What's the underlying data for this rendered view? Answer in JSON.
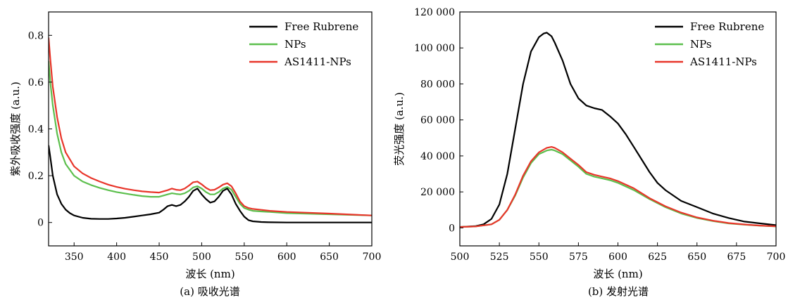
{
  "chart_data": [
    {
      "type": "line",
      "caption": "(a) 吸收光谱",
      "xlabel": "波长 (nm)",
      "ylabel": "紫外吸收强度 (a.u.)",
      "xlim": [
        320,
        700
      ],
      "ylim": [
        -0.1,
        0.9
      ],
      "xticks": [
        350,
        400,
        450,
        500,
        550,
        600,
        650,
        700
      ],
      "xtick_labels": [
        "350",
        "400",
        "450",
        "500",
        "550",
        "600",
        "650",
        "700"
      ],
      "yticks": [
        0,
        0.2,
        0.4,
        0.6,
        0.8
      ],
      "ytick_labels": [
        "0",
        "0.2",
        "0.4",
        "0.6",
        "0.8"
      ],
      "grid": false,
      "legend_position": "top-right",
      "series": [
        {
          "name": "Free Rubrene",
          "color": "#000000",
          "x": [
            320,
            322,
            325,
            330,
            335,
            340,
            345,
            350,
            360,
            370,
            380,
            390,
            400,
            410,
            420,
            430,
            440,
            450,
            455,
            460,
            465,
            470,
            475,
            480,
            485,
            490,
            495,
            500,
            505,
            510,
            515,
            520,
            525,
            530,
            535,
            540,
            545,
            550,
            555,
            560,
            570,
            580,
            600,
            650,
            700
          ],
          "y": [
            0.33,
            0.28,
            0.2,
            0.12,
            0.08,
            0.055,
            0.04,
            0.03,
            0.02,
            0.016,
            0.015,
            0.015,
            0.017,
            0.02,
            0.025,
            0.03,
            0.035,
            0.042,
            0.055,
            0.07,
            0.075,
            0.07,
            0.075,
            0.09,
            0.11,
            0.135,
            0.145,
            0.12,
            0.1,
            0.085,
            0.09,
            0.11,
            0.135,
            0.145,
            0.12,
            0.08,
            0.05,
            0.025,
            0.01,
            0.005,
            0.002,
            0.001,
            0.0,
            0.0,
            0.0
          ]
        },
        {
          "name": "NPs",
          "color": "#5cbf4d",
          "x": [
            320,
            322,
            325,
            330,
            335,
            340,
            350,
            360,
            370,
            380,
            390,
            400,
            410,
            420,
            430,
            440,
            450,
            460,
            465,
            470,
            475,
            480,
            485,
            490,
            495,
            500,
            505,
            510,
            515,
            520,
            525,
            530,
            535,
            540,
            545,
            550,
            555,
            560,
            570,
            580,
            600,
            650,
            700
          ],
          "y": [
            0.69,
            0.6,
            0.5,
            0.38,
            0.3,
            0.25,
            0.2,
            0.175,
            0.16,
            0.148,
            0.138,
            0.13,
            0.124,
            0.118,
            0.113,
            0.11,
            0.11,
            0.12,
            0.125,
            0.122,
            0.12,
            0.125,
            0.135,
            0.15,
            0.155,
            0.145,
            0.13,
            0.12,
            0.12,
            0.13,
            0.145,
            0.152,
            0.14,
            0.11,
            0.08,
            0.062,
            0.055,
            0.05,
            0.047,
            0.045,
            0.04,
            0.035,
            0.03
          ]
        },
        {
          "name": "AS1411-NPs",
          "color": "#e8352a",
          "x": [
            320,
            322,
            325,
            330,
            335,
            340,
            350,
            360,
            370,
            380,
            390,
            400,
            410,
            420,
            430,
            440,
            450,
            460,
            465,
            470,
            475,
            480,
            485,
            490,
            495,
            500,
            505,
            510,
            515,
            520,
            525,
            530,
            535,
            540,
            545,
            550,
            555,
            560,
            570,
            580,
            600,
            650,
            700
          ],
          "y": [
            0.79,
            0.7,
            0.58,
            0.45,
            0.36,
            0.3,
            0.24,
            0.21,
            0.19,
            0.175,
            0.162,
            0.152,
            0.144,
            0.138,
            0.133,
            0.13,
            0.128,
            0.138,
            0.145,
            0.14,
            0.138,
            0.145,
            0.158,
            0.172,
            0.175,
            0.163,
            0.148,
            0.138,
            0.14,
            0.15,
            0.162,
            0.168,
            0.155,
            0.125,
            0.09,
            0.07,
            0.062,
            0.058,
            0.054,
            0.05,
            0.045,
            0.038,
            0.03
          ]
        }
      ]
    },
    {
      "type": "line",
      "caption": "(b) 发射光谱",
      "xlabel": "波长 (nm)",
      "ylabel": "荧光强度 (a.u.)",
      "xlim": [
        500,
        700
      ],
      "ylim": [
        -10000,
        120000
      ],
      "xticks": [
        500,
        525,
        550,
        575,
        600,
        625,
        650,
        675,
        700
      ],
      "xtick_labels": [
        "500",
        "525",
        "550",
        "575",
        "600",
        "625",
        "650",
        "675",
        "700"
      ],
      "yticks": [
        0,
        20000,
        40000,
        60000,
        80000,
        100000,
        120000
      ],
      "ytick_labels": [
        "0",
        "20 000",
        "40 000",
        "60 000",
        "80 000",
        "100 000",
        "120 000"
      ],
      "grid": false,
      "legend_position": "top-right",
      "series": [
        {
          "name": "Free Rubrene",
          "color": "#000000",
          "x": [
            500,
            510,
            515,
            520,
            525,
            530,
            535,
            540,
            545,
            550,
            553,
            555,
            558,
            560,
            565,
            570,
            575,
            580,
            585,
            590,
            595,
            600,
            605,
            610,
            615,
            620,
            625,
            630,
            640,
            650,
            660,
            670,
            680,
            690,
            700
          ],
          "y": [
            500,
            1000,
            2000,
            5000,
            13000,
            30000,
            55000,
            80000,
            98000,
            106000,
            108000,
            108500,
            106500,
            103000,
            93000,
            80000,
            72000,
            68000,
            66500,
            65500,
            62000,
            58000,
            52000,
            45000,
            38000,
            31000,
            25000,
            21000,
            15000,
            11500,
            8000,
            5500,
            3500,
            2500,
            1500
          ]
        },
        {
          "name": "NPs",
          "color": "#5cbf4d",
          "x": [
            500,
            510,
            520,
            525,
            530,
            535,
            540,
            545,
            550,
            555,
            558,
            560,
            565,
            570,
            575,
            580,
            585,
            590,
            595,
            600,
            610,
            620,
            630,
            640,
            650,
            660,
            670,
            680,
            690,
            700
          ],
          "y": [
            500,
            800,
            2000,
            4500,
            10000,
            18000,
            28000,
            36000,
            41000,
            43000,
            43500,
            43000,
            41000,
            37500,
            34000,
            30000,
            28500,
            27500,
            26500,
            25000,
            21000,
            16000,
            11500,
            8000,
            5500,
            3800,
            2500,
            1800,
            1200,
            800
          ]
        },
        {
          "name": "AS1411-NPs",
          "color": "#e8352a",
          "x": [
            500,
            510,
            520,
            525,
            530,
            535,
            540,
            545,
            550,
            555,
            558,
            560,
            565,
            570,
            575,
            580,
            585,
            590,
            595,
            600,
            610,
            620,
            630,
            640,
            650,
            660,
            670,
            680,
            690,
            700
          ],
          "y": [
            500,
            800,
            2000,
            4500,
            10000,
            18500,
            29000,
            37000,
            42000,
            44500,
            45000,
            44500,
            42000,
            38500,
            35000,
            31000,
            29500,
            28500,
            27500,
            26000,
            22000,
            16500,
            12000,
            8500,
            5800,
            4000,
            2700,
            1900,
            1300,
            900
          ]
        }
      ]
    }
  ]
}
